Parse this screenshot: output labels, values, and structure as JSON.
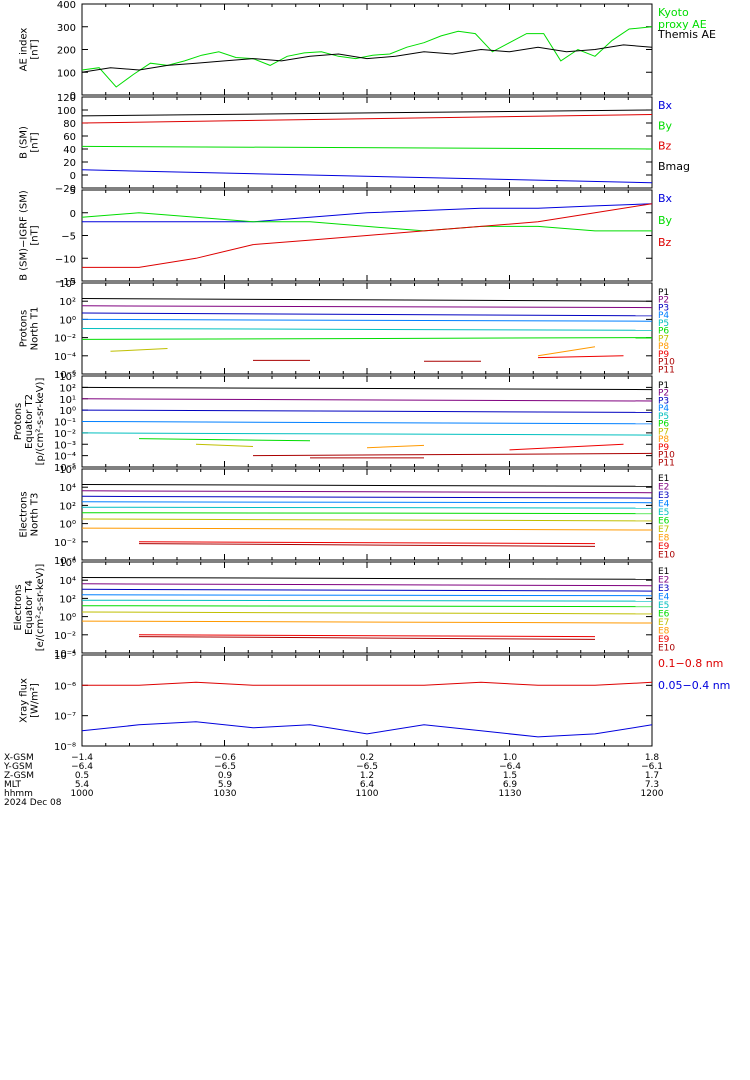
{
  "chart_data": [
    {
      "type": "line",
      "id": "ae",
      "ylabel": [
        "AE index",
        "[nT]"
      ],
      "ylim": [
        0,
        400
      ],
      "yticks": [
        "0",
        "100",
        "200",
        "300",
        "400"
      ],
      "ytick_vals": [
        0,
        100,
        200,
        300,
        400
      ],
      "series": [
        {
          "name": "Kyoto\nproxy AE",
          "color": "#00dd00",
          "x": [
            0,
            0.03,
            0.06,
            0.09,
            0.12,
            0.15,
            0.18,
            0.21,
            0.24,
            0.27,
            0.3,
            0.33,
            0.36,
            0.39,
            0.42,
            0.45,
            0.48,
            0.51,
            0.54,
            0.57,
            0.6,
            0.63,
            0.66,
            0.69,
            0.72,
            0.75,
            0.78,
            0.81,
            0.84,
            0.87,
            0.9,
            0.93,
            0.96,
            1.0
          ],
          "y": [
            110,
            120,
            35,
            90,
            140,
            130,
            150,
            175,
            190,
            165,
            160,
            130,
            170,
            185,
            190,
            170,
            160,
            175,
            180,
            210,
            230,
            260,
            280,
            270,
            190,
            230,
            270,
            270,
            150,
            200,
            170,
            240,
            290,
            300
          ]
        },
        {
          "name": "Themis AE",
          "color": "#000000",
          "x": [
            0,
            0.05,
            0.1,
            0.15,
            0.2,
            0.25,
            0.3,
            0.35,
            0.4,
            0.45,
            0.5,
            0.55,
            0.6,
            0.65,
            0.7,
            0.75,
            0.8,
            0.85,
            0.9,
            0.95,
            1.0
          ],
          "y": [
            100,
            120,
            110,
            130,
            140,
            150,
            160,
            150,
            170,
            180,
            160,
            170,
            190,
            180,
            200,
            190,
            210,
            190,
            200,
            220,
            210
          ]
        }
      ]
    },
    {
      "type": "line",
      "id": "bsm",
      "ylabel": [
        "B (SM)",
        "[nT]"
      ],
      "ylim": [
        -20,
        120
      ],
      "yticks": [
        "−20",
        "0",
        "20",
        "40",
        "60",
        "80",
        "100",
        "120"
      ],
      "ytick_vals": [
        -20,
        0,
        20,
        40,
        60,
        80,
        100,
        120
      ],
      "series": [
        {
          "name": "Bx",
          "color": "#0000dd",
          "x": [
            0,
            1
          ],
          "y": [
            8,
            -12
          ]
        },
        {
          "name": "By",
          "color": "#00dd00",
          "x": [
            0,
            1
          ],
          "y": [
            44,
            40
          ]
        },
        {
          "name": "Bz",
          "color": "#dd0000",
          "x": [
            0,
            1
          ],
          "y": [
            80,
            93
          ]
        },
        {
          "name": "Bmag",
          "color": "#000000",
          "x": [
            0,
            1
          ],
          "y": [
            91,
            100
          ]
        }
      ]
    },
    {
      "type": "line",
      "id": "bigrf",
      "ylabel": [
        "B (SM)−IGRF (SM)",
        "[nT]"
      ],
      "ylim": [
        -15,
        5
      ],
      "yticks": [
        "−15",
        "−10",
        "−5",
        "0",
        "5"
      ],
      "ytick_vals": [
        -15,
        -10,
        -5,
        0,
        5
      ],
      "series": [
        {
          "name": "Bx",
          "color": "#0000dd",
          "x": [
            0,
            0.1,
            0.2,
            0.3,
            0.4,
            0.5,
            0.6,
            0.7,
            0.8,
            0.9,
            1.0
          ],
          "y": [
            -2,
            -2,
            -2,
            -2,
            -1,
            0,
            0.5,
            1,
            1,
            1.5,
            2
          ]
        },
        {
          "name": "By",
          "color": "#00dd00",
          "x": [
            0,
            0.1,
            0.2,
            0.3,
            0.4,
            0.5,
            0.6,
            0.7,
            0.8,
            0.9,
            1.0
          ],
          "y": [
            -1,
            0,
            -1,
            -2,
            -2,
            -3,
            -4,
            -3,
            -3,
            -4,
            -4
          ]
        },
        {
          "name": "Bz",
          "color": "#dd0000",
          "x": [
            0,
            0.1,
            0.2,
            0.3,
            0.4,
            0.5,
            0.6,
            0.7,
            0.8,
            0.9,
            1.0
          ],
          "y": [
            -12,
            -12,
            -10,
            -7,
            -6,
            -5,
            -4,
            -3,
            -2,
            0,
            2
          ]
        }
      ]
    },
    {
      "type": "line",
      "id": "pn",
      "ylabel": [
        "Protons",
        "North T1"
      ],
      "ylog": true,
      "ylim": [
        -6,
        4
      ],
      "yticks": [
        "10⁻⁶",
        "10⁻⁴",
        "10⁻²",
        "10⁰",
        "10²",
        "10⁴"
      ],
      "ytick_vals": [
        -6,
        -4,
        -2,
        0,
        2,
        4
      ],
      "series": [
        {
          "name": "P1",
          "color": "#000000",
          "x": [
            0,
            1
          ],
          "y": [
            2.3,
            2.0
          ]
        },
        {
          "name": "P2",
          "color": "#7f007f",
          "x": [
            0,
            1
          ],
          "y": [
            1.5,
            1.3
          ]
        },
        {
          "name": "P3",
          "color": "#0000bf",
          "x": [
            0,
            1
          ],
          "y": [
            0.7,
            0.4
          ]
        },
        {
          "name": "P4",
          "color": "#007fff",
          "x": [
            0,
            1
          ],
          "y": [
            0.0,
            -0.2
          ]
        },
        {
          "name": "P5",
          "color": "#00bfbf",
          "x": [
            0,
            1
          ],
          "y": [
            -1.0,
            -1.2
          ]
        },
        {
          "name": "P6",
          "color": "#00dd00",
          "x": [
            0,
            1
          ],
          "y": [
            -2.2,
            -2.0
          ]
        },
        {
          "name": "P7",
          "color": "#bfbf00",
          "x": [
            0.05,
            0.15
          ],
          "y": [
            -3.5,
            -3.2
          ]
        },
        {
          "name": "P8",
          "color": "#ff9900",
          "x": [
            0.8,
            0.9
          ],
          "y": [
            -4.0,
            -3.0
          ]
        },
        {
          "name": "P9",
          "color": "#ee0000",
          "x": [
            0.8,
            0.95
          ],
          "y": [
            -4.2,
            -4.0
          ]
        },
        {
          "name": "P10",
          "color": "#aa0000",
          "x": [
            0.3,
            0.4
          ],
          "y": [
            -4.5,
            -4.5
          ]
        },
        {
          "name": "P11",
          "color": "#aa0000",
          "x": [
            0.6,
            0.7
          ],
          "y": [
            -4.6,
            -4.6
          ]
        }
      ]
    },
    {
      "type": "line",
      "id": "pe",
      "ylabel": [
        "Protons",
        "Equator T2",
        "[p/(cm²-s-sr-keV)]"
      ],
      "ylog": true,
      "ylim": [
        -5,
        3
      ],
      "yticks": [
        "10⁻⁵",
        "10⁻⁴",
        "10⁻³",
        "10⁻²",
        "10⁻¹",
        "10⁰",
        "10¹",
        "10²",
        "10³"
      ],
      "ytick_vals": [
        -5,
        -4,
        -3,
        -2,
        -1,
        0,
        1,
        2,
        3
      ],
      "series": [
        {
          "name": "P1",
          "color": "#000000",
          "x": [
            0,
            1
          ],
          "y": [
            2.0,
            1.8
          ]
        },
        {
          "name": "P2",
          "color": "#7f007f",
          "x": [
            0,
            1
          ],
          "y": [
            1.0,
            0.8
          ]
        },
        {
          "name": "P3",
          "color": "#0000bf",
          "x": [
            0,
            1
          ],
          "y": [
            0.0,
            -0.2
          ]
        },
        {
          "name": "P4",
          "color": "#007fff",
          "x": [
            0,
            1
          ],
          "y": [
            -1.0,
            -1.2
          ]
        },
        {
          "name": "P5",
          "color": "#00bfbf",
          "x": [
            0,
            1
          ],
          "y": [
            -2.0,
            -2.2
          ]
        },
        {
          "name": "P6",
          "color": "#00dd00",
          "x": [
            0.1,
            0.4
          ],
          "y": [
            -2.5,
            -2.7
          ]
        },
        {
          "name": "P7",
          "color": "#bfbf00",
          "x": [
            0.2,
            0.3
          ],
          "y": [
            -3.0,
            -3.2
          ]
        },
        {
          "name": "P8",
          "color": "#ff9900",
          "x": [
            0.5,
            0.6
          ],
          "y": [
            -3.3,
            -3.1
          ]
        },
        {
          "name": "P9",
          "color": "#ee0000",
          "x": [
            0.75,
            0.95
          ],
          "y": [
            -3.5,
            -3.0
          ]
        },
        {
          "name": "P10",
          "color": "#aa0000",
          "x": [
            0.3,
            1.0
          ],
          "y": [
            -4.0,
            -3.8
          ]
        },
        {
          "name": "P11",
          "color": "#aa0000",
          "x": [
            0.4,
            0.6
          ],
          "y": [
            -4.2,
            -4.2
          ]
        }
      ]
    },
    {
      "type": "line",
      "id": "en",
      "ylabel": [
        "Electrons",
        "North T3"
      ],
      "ylog": true,
      "ylim": [
        -4,
        6
      ],
      "yticks": [
        "10⁻⁴",
        "10⁻²",
        "10⁰",
        "10²",
        "10⁴",
        "10⁶"
      ],
      "ytick_vals": [
        -4,
        -2,
        0,
        2,
        4,
        6
      ],
      "series": [
        {
          "name": "E1",
          "color": "#000000",
          "x": [
            0,
            1
          ],
          "y": [
            4.3,
            4.1
          ]
        },
        {
          "name": "E2",
          "color": "#7f007f",
          "x": [
            0,
            1
          ],
          "y": [
            3.6,
            3.4
          ]
        },
        {
          "name": "E3",
          "color": "#0000bf",
          "x": [
            0,
            1
          ],
          "y": [
            3.0,
            2.8
          ]
        },
        {
          "name": "E4",
          "color": "#007fff",
          "x": [
            0,
            1
          ],
          "y": [
            2.4,
            2.3
          ]
        },
        {
          "name": "E5",
          "color": "#00bfbf",
          "x": [
            0,
            1
          ],
          "y": [
            1.8,
            1.7
          ]
        },
        {
          "name": "E6",
          "color": "#00dd00",
          "x": [
            0,
            1
          ],
          "y": [
            1.2,
            1.1
          ]
        },
        {
          "name": "E7",
          "color": "#bfbf00",
          "x": [
            0,
            1
          ],
          "y": [
            0.5,
            0.3
          ]
        },
        {
          "name": "E8",
          "color": "#ff9900",
          "x": [
            0,
            1
          ],
          "y": [
            -0.5,
            -0.7
          ]
        },
        {
          "name": "E9",
          "color": "#ee0000",
          "x": [
            0.1,
            0.9
          ],
          "y": [
            -2.0,
            -2.2
          ]
        },
        {
          "name": "E10",
          "color": "#aa0000",
          "x": [
            0.1,
            0.9
          ],
          "y": [
            -2.2,
            -2.5
          ]
        }
      ]
    },
    {
      "type": "line",
      "id": "ee",
      "ylabel": [
        "Electrons",
        "Equator T4",
        "[e/(cm²-s-sr-keV)]"
      ],
      "ylog": true,
      "ylim": [
        -4,
        6
      ],
      "yticks": [
        "10⁻⁴",
        "10⁻²",
        "10⁰",
        "10²",
        "10⁴",
        "10⁶"
      ],
      "ytick_vals": [
        -4,
        -2,
        0,
        2,
        4,
        6
      ],
      "series": [
        {
          "name": "E1",
          "color": "#000000",
          "x": [
            0,
            1
          ],
          "y": [
            4.3,
            4.1
          ]
        },
        {
          "name": "E2",
          "color": "#7f007f",
          "x": [
            0,
            1
          ],
          "y": [
            3.6,
            3.4
          ]
        },
        {
          "name": "E3",
          "color": "#0000bf",
          "x": [
            0,
            1
          ],
          "y": [
            3.0,
            2.8
          ]
        },
        {
          "name": "E4",
          "color": "#007fff",
          "x": [
            0,
            1
          ],
          "y": [
            2.4,
            2.3
          ]
        },
        {
          "name": "E5",
          "color": "#00bfbf",
          "x": [
            0,
            1
          ],
          "y": [
            1.8,
            1.7
          ]
        },
        {
          "name": "E6",
          "color": "#00dd00",
          "x": [
            0,
            1
          ],
          "y": [
            1.2,
            1.1
          ]
        },
        {
          "name": "E7",
          "color": "#bfbf00",
          "x": [
            0,
            1
          ],
          "y": [
            0.5,
            0.3
          ]
        },
        {
          "name": "E8",
          "color": "#ff9900",
          "x": [
            0,
            1
          ],
          "y": [
            -0.5,
            -0.7
          ]
        },
        {
          "name": "E9",
          "color": "#ee0000",
          "x": [
            0.1,
            0.9
          ],
          "y": [
            -2.0,
            -2.2
          ]
        },
        {
          "name": "E10",
          "color": "#aa0000",
          "x": [
            0.1,
            0.9
          ],
          "y": [
            -2.2,
            -2.5
          ]
        }
      ]
    },
    {
      "type": "line",
      "id": "xray",
      "ylabel": [
        "Xray flux",
        "[W/m²]"
      ],
      "ylog": true,
      "ylim": [
        -8,
        -5
      ],
      "yticks": [
        "10⁻⁸",
        "10⁻⁷",
        "10⁻⁶",
        "10⁻⁵"
      ],
      "ytick_vals": [
        -8,
        -7,
        -6,
        -5
      ],
      "series": [
        {
          "name": "0.1−0.8 nm",
          "color": "#dd0000",
          "x": [
            0,
            0.1,
            0.2,
            0.3,
            0.4,
            0.5,
            0.6,
            0.7,
            0.8,
            0.9,
            1.0
          ],
          "y": [
            -6.0,
            -6.0,
            -5.9,
            -6.0,
            -6.0,
            -6.0,
            -6.0,
            -5.9,
            -6.0,
            -6.0,
            -5.9
          ]
        },
        {
          "name": "0.05−0.4 nm",
          "color": "#0000dd",
          "x": [
            0,
            0.1,
            0.2,
            0.3,
            0.4,
            0.5,
            0.6,
            0.7,
            0.8,
            0.9,
            1.0
          ],
          "y": [
            -7.5,
            -7.3,
            -7.2,
            -7.4,
            -7.3,
            -7.6,
            -7.3,
            -7.5,
            -7.7,
            -7.6,
            -7.3
          ]
        }
      ]
    }
  ],
  "footer": {
    "rows": [
      {
        "label": "X-GSM",
        "values": [
          "−1.4",
          "−0.6",
          "0.2",
          "1.0",
          "1.8"
        ]
      },
      {
        "label": "Y-GSM",
        "values": [
          "−6.4",
          "−6.5",
          "−6.5",
          "−6.4",
          "−6.1"
        ]
      },
      {
        "label": "Z-GSM",
        "values": [
          "0.5",
          "0.9",
          "1.2",
          "1.5",
          "1.7"
        ]
      },
      {
        "label": "MLT",
        "values": [
          "5.4",
          "5.9",
          "6.4",
          "6.9",
          "7.3"
        ]
      },
      {
        "label": "hhmm",
        "values": [
          "1000",
          "1030",
          "1100",
          "1130",
          "1200"
        ]
      }
    ],
    "date": "2024 Dec 08"
  }
}
